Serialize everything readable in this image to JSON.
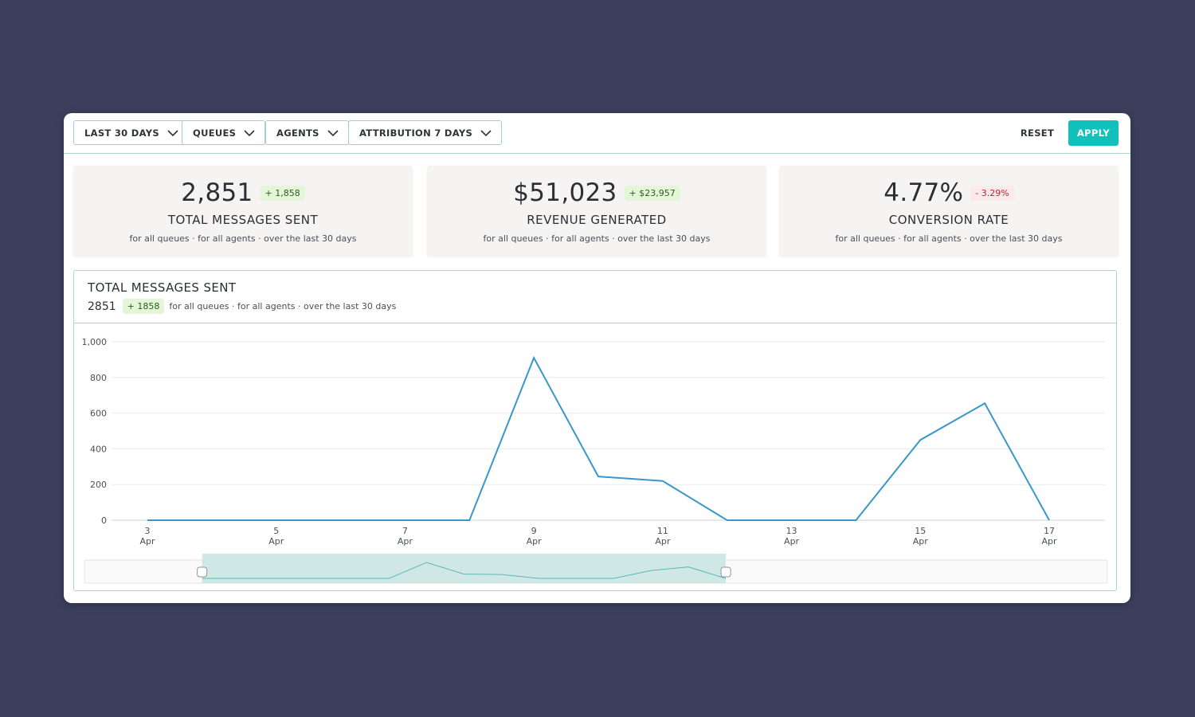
{
  "filters": [
    {
      "label": "LAST 30 DAYS"
    },
    {
      "label": "QUEUES"
    },
    {
      "label": "AGENTS"
    },
    {
      "label": "ATTRIBUTION 7 DAYS"
    }
  ],
  "actions": {
    "reset_label": "RESET",
    "apply_label": "APPLY"
  },
  "colors": {
    "accent": "#12c1bb",
    "line": "#3a97c9",
    "positive_bg": "#e3f7d8",
    "negative_bg": "#fde8ea"
  },
  "kpis": [
    {
      "value": "2,851",
      "delta": "+ 1,858",
      "trend": "positive",
      "title": "TOTAL MESSAGES SENT",
      "subtitle": "for all queues · for all agents · over the last 30 days"
    },
    {
      "value": "$51,023",
      "delta": "+ $23,957",
      "trend": "positive",
      "title": "REVENUE GENERATED",
      "subtitle": "for all queues · for all agents · over the last 30 days"
    },
    {
      "value": "4.77%",
      "delta": "- 3.29%",
      "trend": "negative",
      "title": "CONVERSION RATE",
      "subtitle": "for all queues · for all agents · over the last 30 days"
    }
  ],
  "chart_panel": {
    "title": "TOTAL MESSAGES SENT",
    "value": "2851",
    "delta": "+ 1858",
    "subtitle": "for all queues · for all agents · over the last 30 days"
  },
  "chart_data": {
    "type": "line",
    "title": "TOTAL MESSAGES SENT",
    "xlabel": "",
    "ylabel": "",
    "ylim": [
      0,
      1000
    ],
    "yticks": [
      "0",
      "200",
      "400",
      "600",
      "800",
      "1,000"
    ],
    "x": [
      "3 Apr",
      "4 Apr",
      "5 Apr",
      "6 Apr",
      "7 Apr",
      "8 Apr",
      "9 Apr",
      "10 Apr",
      "11 Apr",
      "12 Apr",
      "13 Apr",
      "14 Apr",
      "15 Apr",
      "16 Apr",
      "17 Apr"
    ],
    "xtick_labels": [
      {
        "day": "3",
        "month": "Apr"
      },
      {
        "day": "5",
        "month": "Apr"
      },
      {
        "day": "7",
        "month": "Apr"
      },
      {
        "day": "9",
        "month": "Apr"
      },
      {
        "day": "11",
        "month": "Apr"
      },
      {
        "day": "13",
        "month": "Apr"
      },
      {
        "day": "15",
        "month": "Apr"
      },
      {
        "day": "17",
        "month": "Apr"
      }
    ],
    "series": [
      {
        "values": [
          0,
          0,
          0,
          0,
          0,
          0,
          910,
          245,
          220,
          0,
          0,
          0,
          450,
          655,
          0
        ]
      }
    ],
    "grid": true,
    "range_selector": {
      "start_fraction": 0.115,
      "end_fraction": 0.627
    }
  }
}
